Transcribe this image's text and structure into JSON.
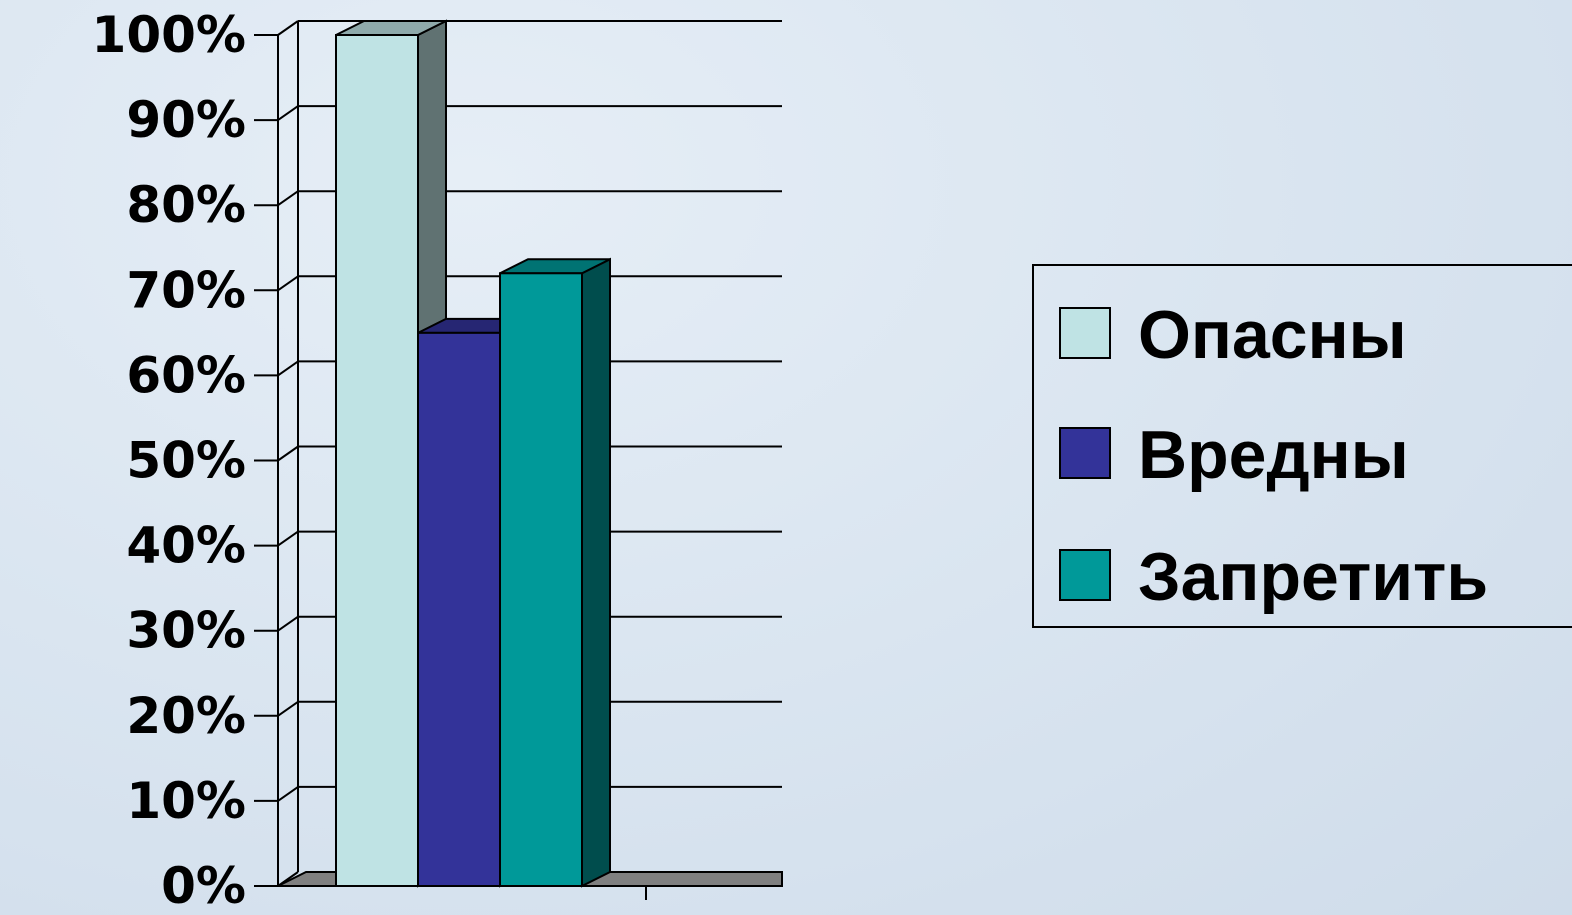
{
  "chart_data": {
    "type": "bar",
    "categories": [
      ""
    ],
    "series": [
      {
        "name": "Опасны",
        "values": [
          100
        ],
        "color": "#bfe3e4"
      },
      {
        "name": "Вредны",
        "values": [
          65
        ],
        "color": "#333399"
      },
      {
        "name": "Запретить",
        "values": [
          72
        ],
        "color": "#009999"
      }
    ],
    "yticks": [
      "0%",
      "10%",
      "20%",
      "30%",
      "40%",
      "50%",
      "60%",
      "70%",
      "80%",
      "90%",
      "100%"
    ],
    "ylim": [
      0,
      100
    ],
    "grid": true,
    "three_d": true,
    "legend_position": "right",
    "colors": {
      "background": "#dbe6f1",
      "floor": "#808080",
      "axis": "#000000"
    }
  }
}
